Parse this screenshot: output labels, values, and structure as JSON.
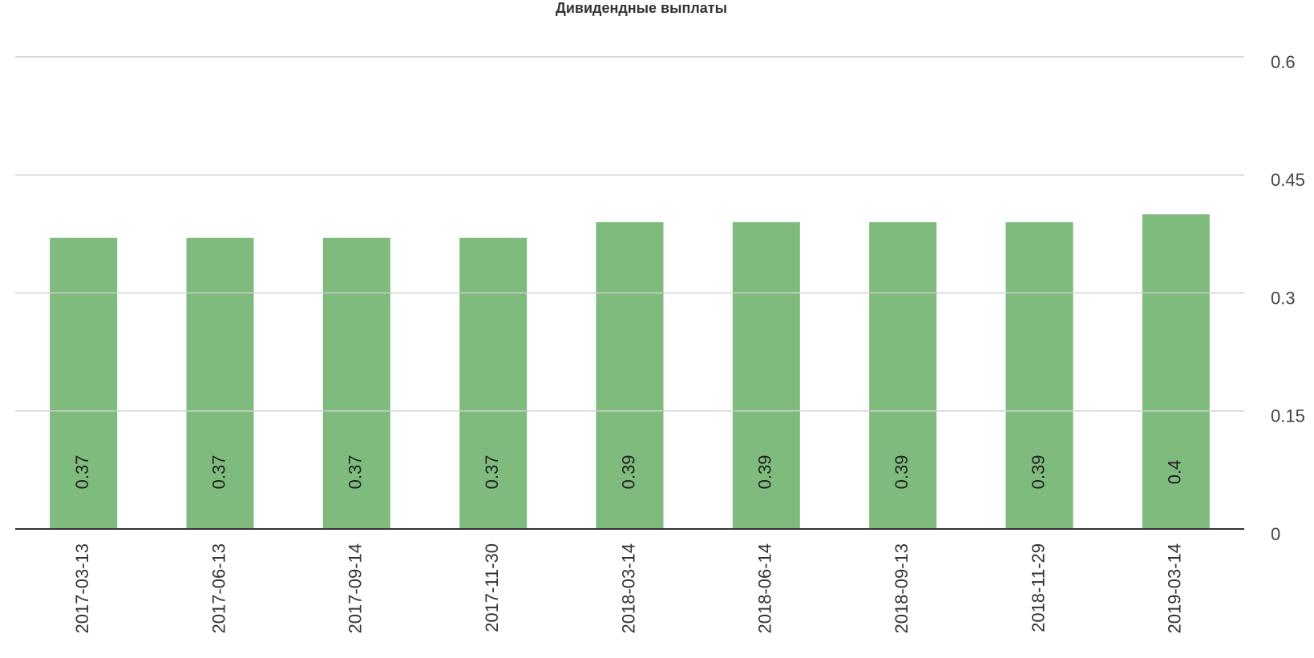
{
  "chart_data": {
    "type": "bar",
    "title": "Дивидендные выплаты",
    "categories": [
      "2017-03-13",
      "2017-06-13",
      "2017-09-14",
      "2017-11-30",
      "2018-03-14",
      "2018-06-14",
      "2018-09-13",
      "2018-11-29",
      "2019-03-14"
    ],
    "values": [
      0.37,
      0.37,
      0.37,
      0.37,
      0.39,
      0.39,
      0.39,
      0.39,
      0.4
    ],
    "color": "#6cb26a",
    "ylim": [
      0,
      0.6
    ],
    "yticks": [
      0,
      0.15,
      0.3,
      0.45,
      0.6
    ],
    "grid": true
  }
}
